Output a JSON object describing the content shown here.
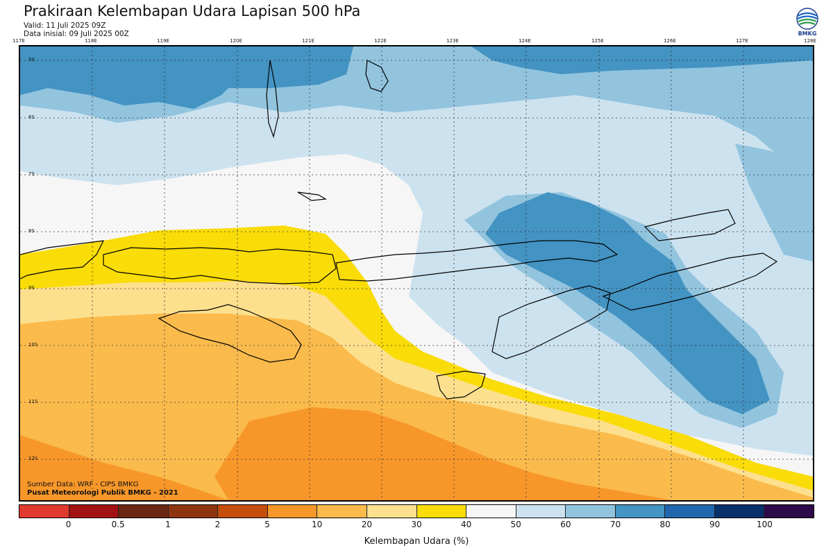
{
  "header": {
    "title": "Prakiraan Kelembapan Udara Lapisan 500 hPa",
    "valid": "Valid: 11 Juli 2025 09Z",
    "initial": "Data inisial: 09 Juli 2025 00Z"
  },
  "logo": {
    "text": "BMKG",
    "icon": "bmkg-logo"
  },
  "map": {
    "lon_labels": [
      "117E",
      "118E",
      "119E",
      "120E",
      "121E",
      "122E",
      "123E",
      "124E",
      "125E",
      "126E",
      "127E",
      "128E"
    ],
    "lat_labels": [
      "5S",
      "6S",
      "7S",
      "8S",
      "9S",
      "10S",
      "11S",
      "12S"
    ],
    "lon_range": [
      117,
      128
    ],
    "lat_range": [
      4.8,
      12.8
    ],
    "gridlines": "dotted",
    "credit_line1": "Sumber Data: WRF - CIPS BMKG",
    "credit_line2": "Pusat Meteorologi Publik BMKG - 2021"
  },
  "colorbar": {
    "title": "Kelembapan Udara (%)",
    "labels": [
      "0",
      "0.5",
      "1",
      "2",
      "5",
      "10",
      "20",
      "30",
      "40",
      "50",
      "60",
      "70",
      "80",
      "90",
      "100"
    ],
    "colors": [
      "#e03a2f",
      "#a31212",
      "#6b2712",
      "#8e3510",
      "#c44e0c",
      "#f7972a",
      "#fbbb4c",
      "#fde08e",
      "#f9dc08",
      "#f6f6f6",
      "#cde2ef",
      "#92c4de",
      "#4393c3",
      "#2166ac",
      "#08306b",
      "#2d0a4a"
    ]
  }
}
